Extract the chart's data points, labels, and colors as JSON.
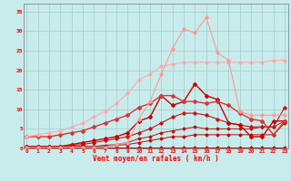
{
  "xlabel": "Vent moyen/en rafales ( km/h )",
  "bg_color": "#c8ecec",
  "grid_color": "#a8d0d0",
  "x_ticks": [
    0,
    1,
    2,
    3,
    4,
    5,
    6,
    7,
    8,
    9,
    10,
    11,
    12,
    13,
    14,
    15,
    16,
    17,
    18,
    19,
    20,
    21,
    22,
    23
  ],
  "y_ticks": [
    0,
    5,
    10,
    15,
    20,
    25,
    30,
    35
  ],
  "xlim": [
    -0.3,
    23.3
  ],
  "ylim": [
    0,
    37
  ],
  "lines": [
    {
      "x": [
        0,
        1,
        2,
        3,
        4,
        5,
        6,
        7,
        8,
        9,
        10,
        11,
        12,
        13,
        14,
        15,
        16,
        17,
        18,
        19,
        20,
        21,
        22,
        23
      ],
      "y": [
        0.3,
        0.3,
        0.3,
        0.3,
        0.3,
        0.3,
        0.3,
        0.3,
        0.3,
        0.3,
        0.3,
        0.3,
        0.3,
        0.3,
        0.3,
        0.3,
        0.3,
        0.3,
        0.3,
        0.3,
        0.3,
        0.3,
        0.3,
        0.3
      ],
      "color": "#cc0000",
      "lw": 0.7,
      "ms": 1.5
    },
    {
      "x": [
        0,
        1,
        2,
        3,
        4,
        5,
        6,
        7,
        8,
        9,
        10,
        11,
        12,
        13,
        14,
        15,
        16,
        17,
        18,
        19,
        20,
        21,
        22,
        23
      ],
      "y": [
        0.5,
        0.5,
        0.5,
        0.5,
        0.5,
        0.5,
        0.5,
        0.5,
        0.8,
        1.0,
        1.5,
        2.0,
        2.5,
        3.0,
        3.0,
        3.5,
        3.5,
        3.5,
        3.5,
        3.5,
        3.5,
        3.5,
        3.5,
        6.5
      ],
      "color": "#cc0000",
      "lw": 0.7,
      "ms": 1.5
    },
    {
      "x": [
        0,
        1,
        2,
        3,
        4,
        5,
        6,
        7,
        8,
        9,
        10,
        11,
        12,
        13,
        14,
        15,
        16,
        17,
        18,
        19,
        20,
        21,
        22,
        23
      ],
      "y": [
        0.5,
        0.5,
        0.5,
        0.5,
        0.5,
        0.5,
        0.5,
        0.8,
        1.0,
        1.5,
        2.5,
        3.0,
        4.0,
        4.5,
        5.0,
        5.5,
        5.0,
        5.0,
        5.0,
        5.0,
        5.0,
        5.5,
        5.5,
        7.0
      ],
      "color": "#bb1111",
      "lw": 0.7,
      "ms": 1.5
    },
    {
      "x": [
        0,
        1,
        2,
        3,
        4,
        5,
        6,
        7,
        8,
        9,
        10,
        11,
        12,
        13,
        14,
        15,
        16,
        17,
        18,
        19,
        20,
        21,
        22,
        23
      ],
      "y": [
        0.5,
        0.5,
        0.5,
        0.5,
        0.8,
        1.0,
        1.5,
        2.0,
        2.5,
        3.0,
        4.0,
        5.0,
        6.5,
        8.0,
        9.0,
        9.0,
        8.5,
        7.5,
        6.5,
        6.0,
        5.5,
        5.5,
        5.5,
        10.5
      ],
      "color": "#cc1111",
      "lw": 0.8,
      "ms": 1.8
    },
    {
      "x": [
        0,
        1,
        2,
        3,
        4,
        5,
        6,
        7,
        8,
        9,
        10,
        11,
        12,
        13,
        14,
        15,
        16,
        17,
        18,
        19,
        20,
        21,
        22,
        23
      ],
      "y": [
        0.5,
        0.5,
        0.5,
        0.5,
        1.0,
        1.5,
        2.0,
        2.5,
        3.0,
        4.0,
        7.0,
        8.0,
        13.5,
        11.0,
        12.0,
        16.5,
        13.5,
        12.5,
        6.5,
        6.0,
        3.0,
        3.0,
        7.0,
        7.0
      ],
      "color": "#cc0000",
      "lw": 1.0,
      "ms": 2.0
    },
    {
      "x": [
        0,
        1,
        2,
        3,
        4,
        5,
        6,
        7,
        8,
        9,
        10,
        11,
        12,
        13,
        14,
        15,
        16,
        17,
        18,
        19,
        20,
        21,
        22,
        23
      ],
      "y": [
        3.0,
        3.0,
        3.0,
        3.5,
        4.0,
        4.5,
        5.5,
        6.5,
        7.5,
        8.5,
        10.5,
        11.5,
        13.5,
        13.5,
        12.0,
        12.0,
        11.5,
        12.0,
        11.0,
        9.0,
        7.5,
        7.0,
        3.5,
        7.0
      ],
      "color": "#dd3333",
      "lw": 1.0,
      "ms": 2.0
    },
    {
      "x": [
        0,
        1,
        2,
        3,
        4,
        5,
        6,
        7,
        8,
        9,
        10,
        11,
        12,
        13,
        14,
        15,
        16,
        17,
        18,
        19,
        20,
        21,
        22,
        23
      ],
      "y": [
        3.0,
        3.5,
        4.0,
        4.5,
        5.5,
        6.5,
        8.0,
        9.5,
        11.5,
        14.0,
        17.5,
        19.0,
        21.0,
        21.5,
        22.0,
        22.0,
        22.0,
        22.0,
        22.0,
        22.0,
        22.0,
        22.0,
        22.5,
        22.5
      ],
      "color": "#ffaaaa",
      "lw": 0.8,
      "ms": 1.8
    },
    {
      "x": [
        0,
        1,
        2,
        3,
        4,
        5,
        6,
        7,
        8,
        9,
        10,
        11,
        12,
        13,
        14,
        15,
        16,
        17,
        18,
        19,
        20,
        21,
        22,
        23
      ],
      "y": [
        0.3,
        0.3,
        0.3,
        0.3,
        0.3,
        0.3,
        0.3,
        0.3,
        1.0,
        1.5,
        7.5,
        12.0,
        19.0,
        25.5,
        30.5,
        29.5,
        33.5,
        24.5,
        22.5,
        9.5,
        8.5,
        8.5,
        8.5,
        8.5
      ],
      "color": "#ff9999",
      "lw": 0.8,
      "ms": 1.8
    }
  ]
}
